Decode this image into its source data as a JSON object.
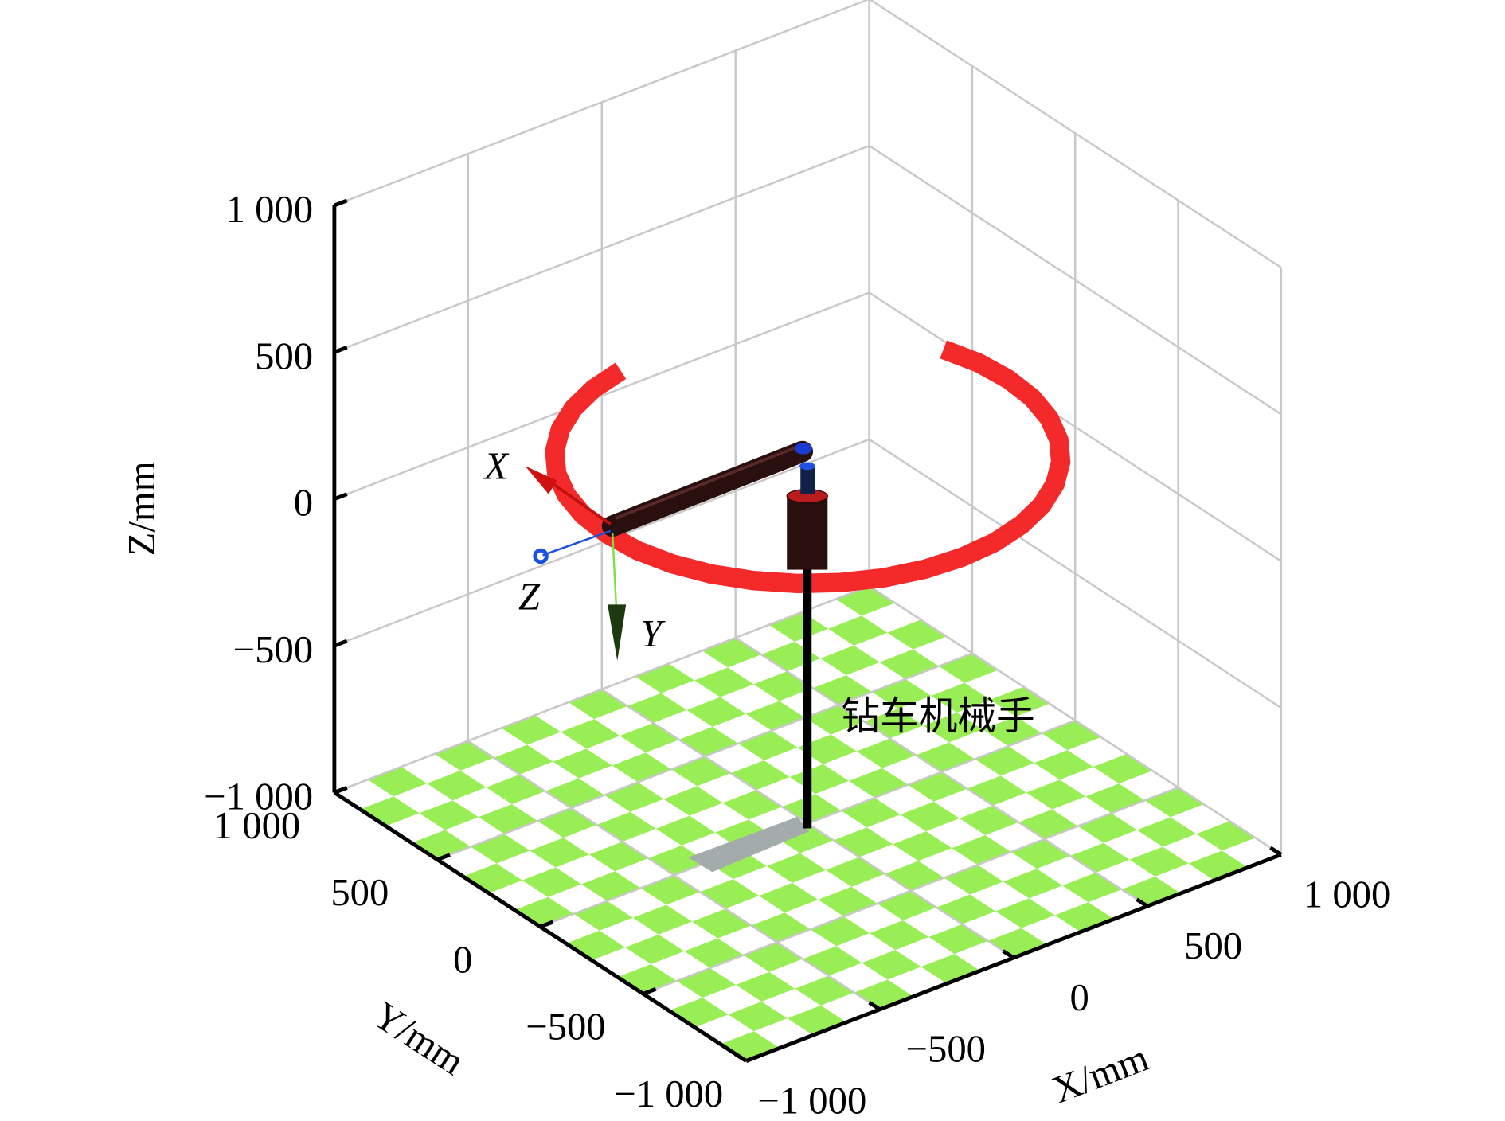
{
  "chart_data": {
    "type": "line3d",
    "xlabel": "X/mm",
    "ylabel": "Y/mm",
    "zlabel": "Z/mm",
    "xlim": [
      -1000,
      1000
    ],
    "ylim": [
      -1000,
      1000
    ],
    "zlim": [
      -1000,
      1000
    ],
    "xticks": [
      {
        "value": -1000,
        "label": "−1 000"
      },
      {
        "value": -500,
        "label": "−500"
      },
      0,
      500,
      {
        "value": 1000,
        "label": "1 000"
      }
    ],
    "yticks": [
      {
        "value": -1000,
        "label": "−1 000"
      },
      {
        "value": -500,
        "label": "−500"
      },
      0,
      500,
      {
        "value": 1000,
        "label": "1 000"
      }
    ],
    "zticks": [
      {
        "value": -1000,
        "label": "−1 000"
      },
      {
        "value": -500,
        "label": "−500"
      },
      0,
      500,
      {
        "value": 1000,
        "label": "1 000"
      }
    ],
    "grid": true,
    "floor_color": "#99ee55",
    "series": [
      {
        "color": "#f42a2a",
        "x": [
          -130,
          -257,
          -375,
          -482,
          -575,
          -650,
          -705,
          -739,
          -750,
          -739,
          -705,
          -650,
          -575,
          -482,
          -375,
          -257,
          -130,
          0,
          130,
          257,
          375,
          482,
          575,
          650,
          705,
          739,
          750,
          739,
          705
        ],
        "y": [
          739,
          705,
          650,
          575,
          482,
          375,
          257,
          130,
          0,
          -130,
          -257,
          -375,
          -482,
          -575,
          -650,
          -705,
          -739,
          -750,
          -739,
          -705,
          -650,
          -575,
          -482,
          -375,
          -257,
          -130,
          0,
          130,
          257
        ],
        "z": [
          250,
          250,
          250,
          250,
          250,
          250,
          250,
          250,
          250,
          250,
          250,
          250,
          250,
          250,
          250,
          250,
          250,
          250,
          250,
          250,
          250,
          250,
          250,
          250,
          250,
          250,
          250,
          250,
          250
        ]
      }
    ],
    "annotation": "钻车机械手",
    "frame_axes": [
      "X",
      "Y",
      "Z"
    ]
  }
}
